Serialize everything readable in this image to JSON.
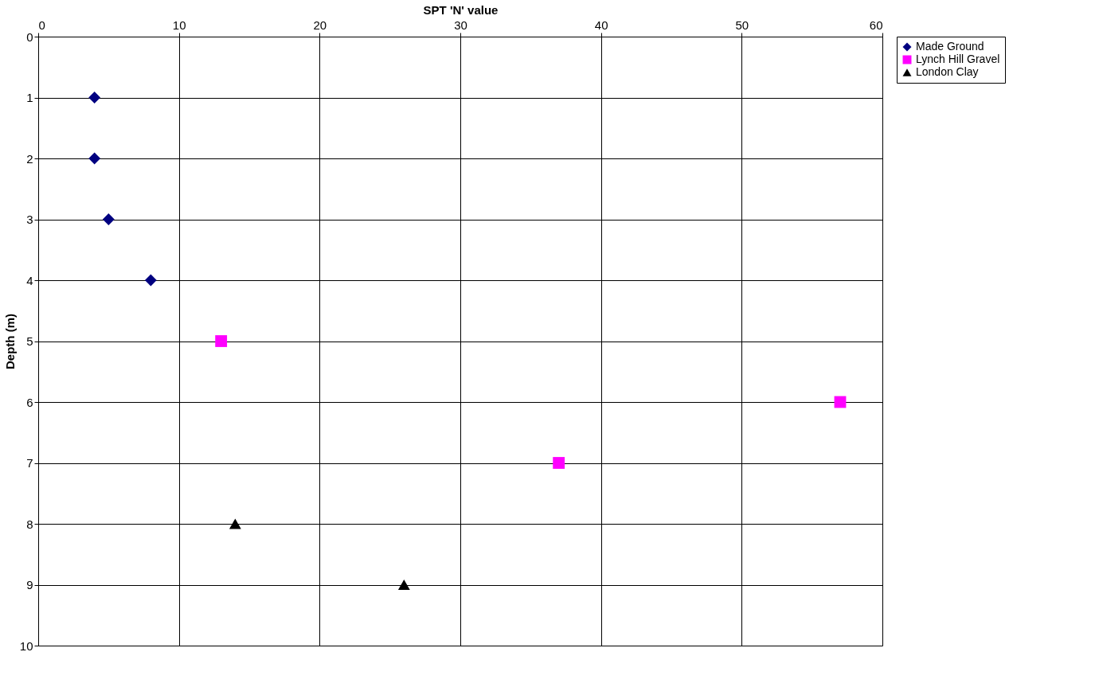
{
  "chart_data": {
    "type": "scatter",
    "xlabel": "SPT 'N' value",
    "ylabel": "Depth (m)",
    "xlim": [
      0,
      60
    ],
    "xticks": [
      0,
      10,
      20,
      30,
      40,
      50,
      60
    ],
    "ylim": [
      10,
      0
    ],
    "yticks": [
      0,
      1,
      2,
      3,
      4,
      5,
      6,
      7,
      8,
      9,
      10
    ],
    "grid": true,
    "legend": "right",
    "series": [
      {
        "name": "Made Ground",
        "color": "#000080",
        "marker": "diamond",
        "x": [
          4,
          4,
          5,
          8
        ],
        "values": [
          1,
          2,
          3,
          4
        ]
      },
      {
        "name": "Lynch Hill Gravel",
        "color": "#ff00ff",
        "marker": "square",
        "x": [
          13,
          57,
          37
        ],
        "values": [
          5,
          6,
          7
        ]
      },
      {
        "name": "London Clay",
        "color": "#000000",
        "marker": "triangle",
        "x": [
          14,
          26
        ],
        "values": [
          8,
          9
        ]
      }
    ]
  }
}
